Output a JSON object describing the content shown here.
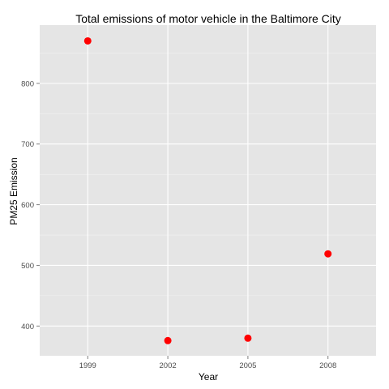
{
  "chart_data": {
    "type": "scatter",
    "title": "Total emissions of motor vehicle in the Baltimore City",
    "xlabel": "Year",
    "ylabel": "PM25 Emission",
    "categories": [
      "1999",
      "2002",
      "2005",
      "2008"
    ],
    "values": [
      870,
      376,
      380,
      519
    ],
    "y_ticks": [
      400,
      500,
      600,
      700,
      800
    ],
    "y_tick_labels": [
      "400",
      "500",
      "600",
      "700",
      "800"
    ],
    "ylim": [
      351,
      896
    ],
    "point_color": "#ff0000",
    "panel_color": "#e5e5e5",
    "grid_color": "#ffffff",
    "grid": true
  }
}
